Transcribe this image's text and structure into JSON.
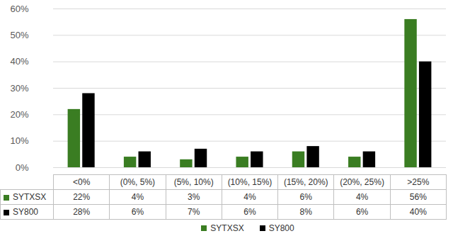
{
  "chart_data": {
    "type": "bar",
    "categories": [
      "<0%",
      "(0%, 5%)",
      "(5%, 10%)",
      "(10%, 15%)",
      "(15%, 20%)",
      "(20%, 25%)",
      ">25%"
    ],
    "series": [
      {
        "name": "SYTXSX",
        "color": "#3a7d22",
        "values": [
          22,
          4,
          3,
          4,
          6,
          4,
          56
        ],
        "value_labels": [
          "22%",
          "4%",
          "3%",
          "4%",
          "6%",
          "4%",
          "56%"
        ]
      },
      {
        "name": "SY800",
        "color": "#000000",
        "values": [
          28,
          6,
          7,
          6,
          8,
          6,
          40
        ],
        "value_labels": [
          "28%",
          "6%",
          "7%",
          "6%",
          "8%",
          "6%",
          "40%"
        ]
      }
    ],
    "ylim": [
      0,
      60
    ],
    "yticks": [
      {
        "value": 0,
        "label": "0%"
      },
      {
        "value": 10,
        "label": "10%"
      },
      {
        "value": 20,
        "label": "20%"
      },
      {
        "value": 30,
        "label": "30%"
      },
      {
        "value": 40,
        "label": "40%"
      },
      {
        "value": 50,
        "label": "50%"
      },
      {
        "value": 60,
        "label": "60%"
      }
    ],
    "grid": true,
    "data_labels": true,
    "legend": "bottom"
  }
}
